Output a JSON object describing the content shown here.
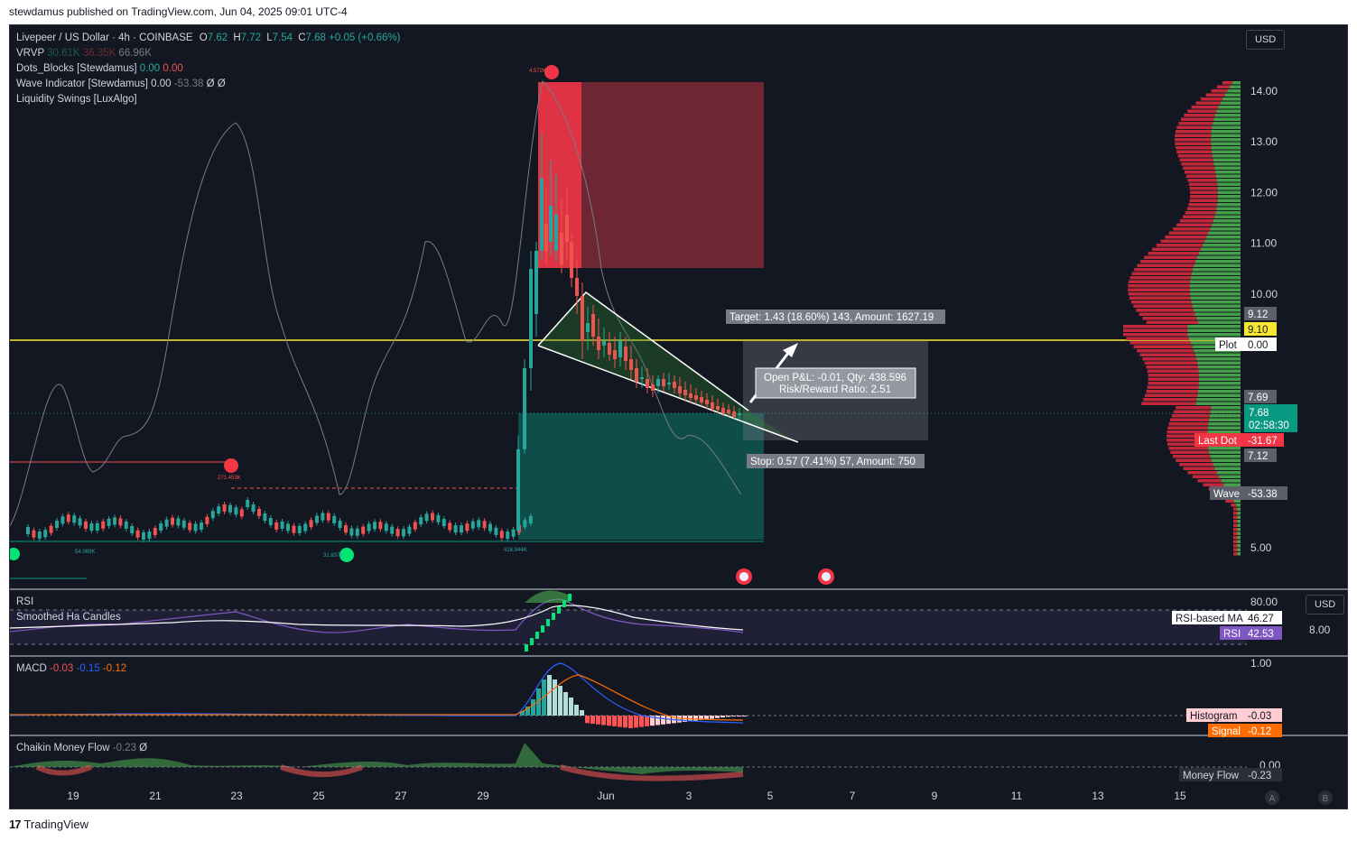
{
  "header": {
    "published": "stewdamus published on TradingView.com, Jun 04, 2025 09:01 UTC-4"
  },
  "footer": {
    "brand": "TradingView",
    "logo_glyph": "17"
  },
  "symbol": {
    "name": "Livepeer / US Dollar · 4h · COINBASE",
    "o_label": "O",
    "o": "7.62",
    "h_label": "H",
    "h": "7.72",
    "l_label": "L",
    "l": "7.54",
    "c_label": "C",
    "c": "7.68",
    "change": "+0.05 (+0.66%)"
  },
  "indicators": {
    "vrvp": {
      "label": "VRVP",
      "v1": "30.61K",
      "v2": "36.35K",
      "v3": "66.96K"
    },
    "dots": {
      "label": "Dots_Blocks [Stewdamus]",
      "v1": "0.00",
      "v2": "0.00"
    },
    "wave": {
      "label": "Wave Indicator [Stewdamus]",
      "v1": "0.00",
      "v2": "-53.38",
      "v3": "Ø",
      "v4": "Ø"
    },
    "liq": {
      "label": "Liquidity Swings [LuxAlgo]"
    }
  },
  "currency_main": "USD",
  "currency_rsi": "USD",
  "price_axis": {
    "ticks": [
      "14.00",
      "13.00",
      "12.00",
      "11.00",
      "10.00",
      "5.00"
    ],
    "tick_values": [
      14,
      13,
      12,
      11,
      10,
      5
    ],
    "labels": {
      "l912": "9.12",
      "l910": "9.10",
      "plot_name": "Plot",
      "plot_val": "0.00",
      "l769": "7.69",
      "l768": "7.68",
      "countdown": "02:58:30",
      "lastdot_name": "Last Dot",
      "lastdot_val": "-31.67",
      "l712": "7.12",
      "wave_name": "Wave",
      "wave_val": "-53.38"
    }
  },
  "rsi_pane": {
    "label": "RSI",
    "label2": "Smoothed Ha Candles",
    "tick_top": "80.00",
    "tick_side": "8.00",
    "ma_name": "RSI-based MA",
    "ma_val": "46.27",
    "rsi_name": "RSI",
    "rsi_val": "42.53"
  },
  "macd_pane": {
    "label": "MACD",
    "v1": "-0.03",
    "v2": "-0.15",
    "v3": "-0.12",
    "tick_top": "1.00",
    "hist_name": "Histogram",
    "hist_val": "-0.03",
    "signal_name": "Signal",
    "signal_val": "-0.12"
  },
  "cmf_pane": {
    "label": "Chaikin Money Flow",
    "v1": "-0.23",
    "v2": "Ø",
    "tick_zero": "0.00",
    "mf_name": "Money Flow",
    "mf_val": "-0.23"
  },
  "time_axis": {
    "labels": [
      "19",
      "21",
      "23",
      "25",
      "27",
      "29",
      "Jun",
      "3",
      "5",
      "7",
      "9",
      "11",
      "13",
      "15"
    ],
    "corner_a": "A",
    "corner_b": "B"
  },
  "annotations": {
    "target": "Target: 1.43 (18.60%) 143, Amount: 1627.19",
    "open_pnl": "Open P&L: -0.01, Qty: 438.596",
    "risk_reward": "Risk/Reward Ratio: 2.51",
    "stop": "Stop: 0.57 (7.41%) 57, Amount: 750",
    "swing_high": "4.572K",
    "swing_1": "271.453K",
    "swing_2": "54.069K",
    "swing_3": "31.837K",
    "swing_4": "416.944K"
  },
  "colors": {
    "bg": "#131722",
    "up": "#26a69a",
    "down": "#ef5350",
    "yellow": "#f7e733",
    "grid": "#2a2e39",
    "text": "#d1d4dc"
  },
  "chart_data": {
    "type": "line",
    "title": "Livepeer / US Dollar · 4h · COINBASE",
    "xlabel": "",
    "ylabel": "",
    "ylim": [
      4.8,
      14.3
    ],
    "grid": false,
    "series": [
      {
        "name": "Livepeer / US Dollar",
        "x": [
          "19",
          "21",
          "23",
          "25",
          "27",
          "29",
          "Jun",
          "3"
        ],
        "values": [
          5.6,
          5.7,
          6.0,
          5.5,
          5.6,
          5.6,
          8.8,
          7.68
        ]
      }
    ],
    "levels": {
      "horizontal": 8.58,
      "last": 7.68
    },
    "trade": {
      "entry": 7.68,
      "target": 9.12,
      "stop": 7.12
    }
  }
}
